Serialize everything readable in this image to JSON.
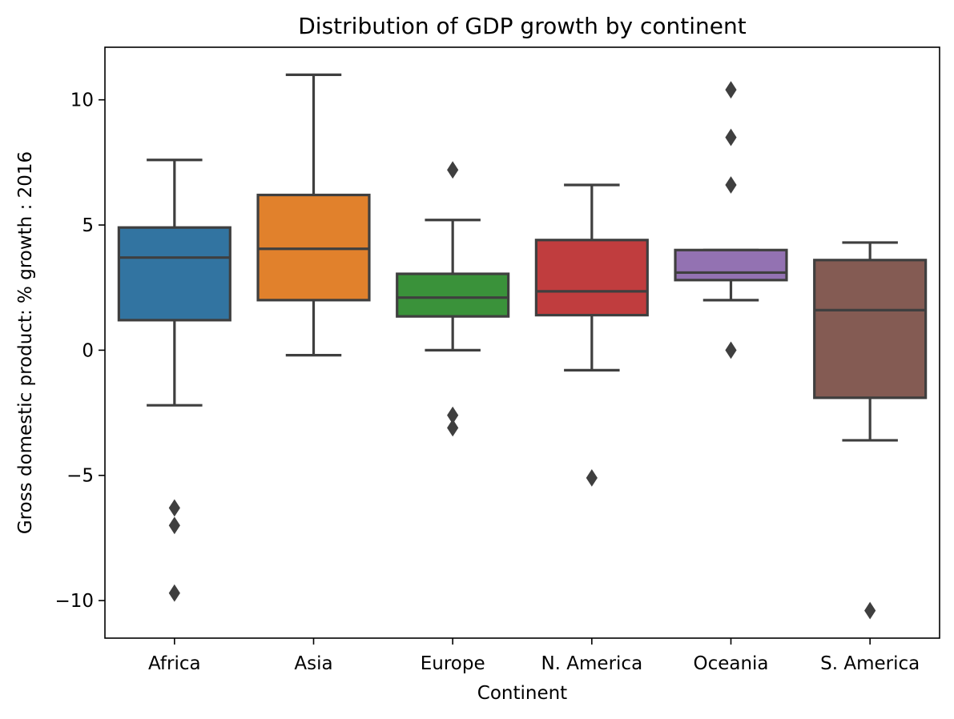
{
  "chart_data": {
    "type": "box",
    "title": "Distribution of GDP growth by continent",
    "xlabel": "Continent",
    "ylabel": "Gross domestic product: % growth : 2016",
    "ylim": [
      -11.5,
      12.1
    ],
    "yticks": [
      {
        "value": 10,
        "label": "10"
      },
      {
        "value": 5,
        "label": "5"
      },
      {
        "value": 0,
        "label": "0"
      },
      {
        "value": -5,
        "label": "−5"
      },
      {
        "value": -10,
        "label": "−10"
      }
    ],
    "grid": false,
    "categories": [
      "Africa",
      "Asia",
      "Europe",
      "N. America",
      "Oceania",
      "S. America"
    ],
    "colors": [
      "#3274a1",
      "#e1812c",
      "#3a923a",
      "#c03d3e",
      "#9372b2",
      "#845b53"
    ],
    "edge_color": "#3f3f3f",
    "boxes": [
      {
        "whisker_low": -2.2,
        "q1": 1.2,
        "median": 3.7,
        "q3": 4.9,
        "whisker_high": 7.6,
        "outliers": [
          -6.3,
          -7.0,
          -9.7
        ]
      },
      {
        "whisker_low": -0.2,
        "q1": 2.0,
        "median": 4.05,
        "q3": 6.2,
        "whisker_high": 11.0,
        "outliers": []
      },
      {
        "whisker_low": 0.0,
        "q1": 1.35,
        "median": 2.1,
        "q3": 3.05,
        "whisker_high": 5.2,
        "outliers": [
          7.2,
          -2.6,
          -3.1
        ]
      },
      {
        "whisker_low": -0.8,
        "q1": 1.4,
        "median": 2.35,
        "q3": 4.4,
        "whisker_high": 6.6,
        "outliers": [
          -5.1
        ]
      },
      {
        "whisker_low": 2.0,
        "q1": 2.8,
        "median": 3.1,
        "q3": 4.0,
        "whisker_high": 4.0,
        "outliers": [
          10.4,
          8.5,
          6.6,
          0.0
        ]
      },
      {
        "whisker_low": -3.6,
        "q1": -1.9,
        "median": 1.6,
        "q3": 3.6,
        "whisker_high": 4.3,
        "outliers": [
          -10.4
        ]
      }
    ]
  }
}
